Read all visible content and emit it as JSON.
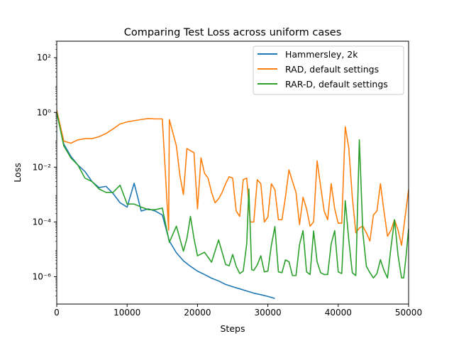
{
  "chart_data": {
    "type": "line",
    "title": "Comparing Test Loss across uniform cases",
    "xlabel": "Steps",
    "ylabel": "Loss",
    "xlim": [
      0,
      50000
    ],
    "ylim": [
      1e-07,
      400
    ],
    "yscale": "log",
    "grid": false,
    "legend_position": "top-right",
    "x_ticks": [
      0,
      10000,
      20000,
      30000,
      40000,
      50000
    ],
    "x_tick_labels": [
      "0",
      "10000",
      "20000",
      "30000",
      "40000",
      "50000"
    ],
    "y_ticks": [
      1e-06,
      0.0001,
      0.01,
      1,
      100
    ],
    "y_tick_labels": [
      "10⁻⁶",
      "10⁻⁴",
      "10⁻²",
      "10⁰",
      "10²"
    ],
    "series": [
      {
        "name": "Hammersley, 2k",
        "color": "#1f77b4",
        "x": [
          0,
          1000,
          2000,
          3000,
          4000,
          5000,
          6000,
          7000,
          8000,
          9000,
          10000,
          11000,
          12000,
          13000,
          14000,
          15000,
          16000,
          17000,
          18000,
          19000,
          20000,
          21000,
          22000,
          23000,
          24000,
          25000,
          26000,
          27000,
          28000,
          29000,
          30000,
          31000
        ],
        "y": [
          1.0,
          0.07,
          0.025,
          0.012,
          0.007,
          0.003,
          0.0018,
          0.002,
          0.0011,
          0.0005,
          0.00035,
          0.0026,
          0.00025,
          0.0003,
          0.00025,
          0.00018,
          2e-05,
          7.5e-06,
          3.8e-06,
          2.4e-06,
          1.6e-06,
          1.2e-06,
          8.8e-07,
          7e-07,
          5.2e-07,
          4.3e-07,
          3.6e-07,
          3e-07,
          2.5e-07,
          2.2e-07,
          1.9e-07,
          1.6e-07
        ]
      },
      {
        "name": "RAD, default settings",
        "color": "#ff7f0e",
        "x": [
          0,
          1000,
          2000,
          3000,
          4000,
          5000,
          6000,
          7000,
          8000,
          9000,
          10000,
          11000,
          12000,
          13000,
          14000,
          15000,
          15900,
          16000,
          17000,
          17500,
          18000,
          18500,
          19000,
          19500,
          20000,
          20500,
          21000,
          21500,
          22000,
          22500,
          23000,
          23500,
          24000,
          24500,
          25000,
          25500,
          26000,
          26500,
          27000,
          27500,
          28000,
          28500,
          29000,
          29500,
          30000,
          30500,
          31000,
          31500,
          32000,
          32500,
          33000,
          33500,
          34000,
          34500,
          35000,
          35500,
          36000,
          36500,
          37000,
          37500,
          38000,
          38500,
          39000,
          39500,
          40000,
          40500,
          41000,
          41500,
          42000,
          42500,
          43000,
          43500,
          44000,
          44500,
          45000,
          45500,
          46000,
          46500,
          47000,
          47500,
          48000,
          48500,
          49000,
          49500,
          50000
        ],
        "y": [
          1.2,
          0.09,
          0.075,
          0.1,
          0.11,
          0.11,
          0.13,
          0.17,
          0.25,
          0.38,
          0.45,
          0.5,
          0.55,
          0.6,
          0.58,
          0.58,
          5e-05,
          0.55,
          0.06,
          0.005,
          0.001,
          0.048,
          0.04,
          0.034,
          0.0003,
          0.022,
          0.006,
          0.004,
          0.0012,
          0.0005,
          0.0007,
          0.0012,
          0.0025,
          0.0045,
          0.004,
          0.00025,
          0.00016,
          0.0035,
          0.004,
          0.0001,
          0.0001,
          0.0035,
          0.0025,
          0.0001,
          0.00015,
          0.0025,
          0.0015,
          0.00012,
          0.00012,
          0.0008,
          0.008,
          0.003,
          0.0012,
          8e-05,
          0.0008,
          0.0003,
          7e-05,
          0.0001,
          0.017,
          0.002,
          0.00025,
          0.00012,
          0.0025,
          0.0003,
          9e-05,
          9e-05,
          0.3,
          0.05,
          0.0008,
          4e-05,
          6e-05,
          7e-05,
          4e-05,
          2e-05,
          0.00018,
          0.00025,
          0.0025,
          0.00025,
          3e-05,
          5e-05,
          0.00012,
          5e-05,
          1.4e-05,
          0.00015,
          0.0015
        ]
      },
      {
        "name": "RAR-D, default settings",
        "color": "#2ca02c",
        "x": [
          0,
          1000,
          2000,
          3000,
          4000,
          5000,
          6000,
          7000,
          8000,
          9000,
          10000,
          11000,
          12000,
          13000,
          14000,
          15000,
          16000,
          17000,
          18000,
          18500,
          19000,
          19500,
          20000,
          21000,
          22000,
          23000,
          24000,
          24500,
          25000,
          25500,
          26000,
          26500,
          27000,
          27300,
          27700,
          28000,
          28500,
          29000,
          29500,
          30000,
          30500,
          31000,
          31500,
          32000,
          32500,
          33000,
          33500,
          34000,
          34500,
          35000,
          35500,
          36000,
          36500,
          37000,
          37500,
          38000,
          38500,
          39000,
          39500,
          40000,
          40500,
          41000,
          41500,
          42000,
          42500,
          43000,
          43500,
          44000,
          44500,
          45000,
          45500,
          46000,
          46500,
          47000,
          47500,
          48000,
          48500,
          49000,
          49300,
          49600,
          50000
        ],
        "y": [
          1.0,
          0.06,
          0.022,
          0.012,
          0.004,
          0.003,
          0.0016,
          0.0012,
          0.0012,
          0.0022,
          0.00045,
          0.00045,
          0.00035,
          0.00028,
          0.00028,
          0.00032,
          1.8e-05,
          7e-05,
          8.5e-06,
          2.5e-05,
          0.00016,
          2.5e-05,
          5.8e-06,
          7.8e-06,
          3.4e-06,
          2.2e-05,
          2.8e-06,
          2.5e-06,
          6.5e-06,
          2.4e-06,
          1.3e-06,
          1.6e-06,
          1.6e-05,
          0.0016,
          1.8e-06,
          1.7e-06,
          2.7e-06,
          5.8e-06,
          1.5e-06,
          1.6e-06,
          1.4e-05,
          6.8e-05,
          1.5e-06,
          1.4e-06,
          4.1e-06,
          3.5e-06,
          1.1e-06,
          1.1e-06,
          1.5e-05,
          4.8e-05,
          1.5e-06,
          1.2e-06,
          4.7e-05,
          3.5e-06,
          1.4e-06,
          1.2e-06,
          1.2e-06,
          1.6e-05,
          4.8e-05,
          1.5e-06,
          1.3e-06,
          0.0006,
          2.2e-05,
          1.4e-06,
          1.1e-06,
          0.1,
          4e-05,
          2.4e-06,
          1.4e-06,
          9e-07,
          1.3e-06,
          4.2e-06,
          1.7e-06,
          9e-07,
          1.2e-05,
          0.00012,
          6e-06,
          9e-07,
          9e-07,
          4.5e-06,
          5.5e-05
        ]
      }
    ]
  }
}
